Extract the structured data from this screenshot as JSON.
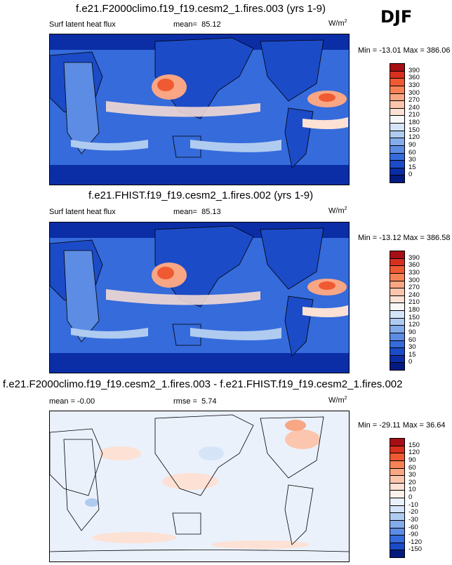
{
  "season": "DJF",
  "panels": [
    {
      "title": "f.e21.F2000climo.f19_f19.cesm2_1.fires.003 (yrs 1-9)",
      "variable": "Surf latent heat flux",
      "stat_label": "mean=",
      "stat_value": "85.12",
      "units_base": "W/m",
      "units_exp": "2",
      "range_text": "Min = -13.01 Max = 386.06",
      "levels": [
        "390",
        "360",
        "330",
        "300",
        "270",
        "240",
        "210",
        "180",
        "150",
        "120",
        "90",
        "60",
        "30",
        "15",
        "0"
      ],
      "colors": [
        "#a50f15",
        "#d7301f",
        "#ef5a32",
        "#f68256",
        "#f9a684",
        "#fbc6ad",
        "#fde1d4",
        "#f7f7f7",
        "#d6e4f7",
        "#b0cbf0",
        "#85acea",
        "#5c8ce3",
        "#356bdb",
        "#1c4bc8",
        "#0b2ea6",
        "#051a80"
      ]
    },
    {
      "title": "f.e21.FHIST.f19_f19.cesm2_1.fires.002 (yrs 1-9)",
      "variable": "Surf latent heat flux",
      "stat_label": "mean=",
      "stat_value": "85.13",
      "units_base": "W/m",
      "units_exp": "2",
      "range_text": "Min = -13.12 Max = 386.58",
      "levels": [
        "390",
        "360",
        "330",
        "300",
        "270",
        "240",
        "210",
        "180",
        "150",
        "120",
        "90",
        "60",
        "30",
        "15",
        "0"
      ],
      "colors": [
        "#a50f15",
        "#d7301f",
        "#ef5a32",
        "#f68256",
        "#f9a684",
        "#fbc6ad",
        "#fde1d4",
        "#f7f7f7",
        "#d6e4f7",
        "#b0cbf0",
        "#85acea",
        "#5c8ce3",
        "#356bdb",
        "#1c4bc8",
        "#0b2ea6",
        "#051a80"
      ]
    },
    {
      "title": "f.e21.F2000climo.f19_f19.cesm2_1.fires.003 - f.e21.FHIST.f19_f19.cesm2_1.fires.002",
      "variable": "mean =  -0.00",
      "stat_label": "rmse =",
      "stat_value": "5.74",
      "units_base": "W/m",
      "units_exp": "2",
      "range_text": "Min = -29.11 Max =  36.64",
      "levels": [
        "150",
        "120",
        "90",
        "60",
        "30",
        "20",
        "10",
        "0",
        "-10",
        "-20",
        "-30",
        "-60",
        "-90",
        "-120",
        "-150"
      ],
      "colors": [
        "#a50f15",
        "#d7301f",
        "#ef5a32",
        "#f68256",
        "#f9a684",
        "#fbc6ad",
        "#fde1d4",
        "#fdf0ea",
        "#eaf1fb",
        "#d6e4f7",
        "#b0cbf0",
        "#85acea",
        "#5c8ce3",
        "#356bdb",
        "#1c4bc8",
        "#051a80"
      ]
    }
  ],
  "chart_data": [
    {
      "type": "heatmap",
      "title": "f.e21.F2000climo.f19_f19.cesm2_1.fires.003 (yrs 1-9)",
      "variable": "Surf latent heat flux",
      "mean": 85.12,
      "min": -13.01,
      "max": 386.06,
      "contour_levels": [
        0,
        15,
        30,
        60,
        90,
        120,
        150,
        180,
        210,
        240,
        270,
        300,
        330,
        360,
        390
      ]
    },
    {
      "type": "heatmap",
      "title": "f.e21.FHIST.f19_f19.cesm2_1.fires.002 (yrs 1-9)",
      "variable": "Surf latent heat flux",
      "mean": 85.13,
      "min": -13.12,
      "max": 386.58,
      "contour_levels": [
        0,
        15,
        30,
        60,
        90,
        120,
        150,
        180,
        210,
        240,
        270,
        300,
        330,
        360,
        390
      ]
    },
    {
      "type": "heatmap",
      "title": "f.e21.F2000climo.f19_f19.cesm2_1.fires.003 - f.e21.FHIST.f19_f19.cesm2_1.fires.002",
      "mean": -0.0,
      "rmse": 5.74,
      "min": -29.11,
      "max": 36.64,
      "contour_levels": [
        -150,
        -120,
        -90,
        -60,
        -30,
        -20,
        -10,
        0,
        10,
        20,
        30,
        60,
        90,
        120,
        150
      ]
    }
  ]
}
